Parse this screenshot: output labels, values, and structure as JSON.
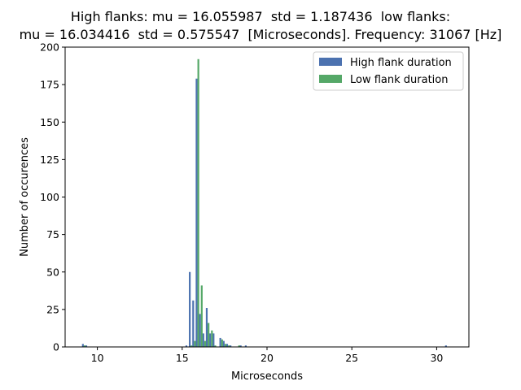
{
  "chart_data": {
    "type": "bar",
    "title_line1": "High flanks: mu = 16.055987  std = 1.187436  low flanks:",
    "title_line2": "mu = 16.034416  std = 0.575547  [Microseconds]. Frequency: 31067 [Hz]",
    "xlabel": "Microseconds",
    "ylabel": "Number of occurences",
    "xlim": [
      8.1,
      31.9
    ],
    "ylim": [
      0,
      200
    ],
    "xticks": [
      10,
      15,
      20,
      25,
      30
    ],
    "yticks": [
      0,
      25,
      50,
      75,
      100,
      125,
      150,
      175,
      200
    ],
    "grid": false,
    "legend_position": "top-right",
    "bin_width": 0.21,
    "series": [
      {
        "name": "High flank duration",
        "color": "#4c72b0",
        "points": [
          {
            "x": 9.2,
            "y": 2
          },
          {
            "x": 9.4,
            "y": 1
          },
          {
            "x": 15.3,
            "y": 1
          },
          {
            "x": 15.5,
            "y": 50
          },
          {
            "x": 15.7,
            "y": 31
          },
          {
            "x": 15.9,
            "y": 179
          },
          {
            "x": 16.1,
            "y": 22
          },
          {
            "x": 16.3,
            "y": 9
          },
          {
            "x": 16.5,
            "y": 26
          },
          {
            "x": 16.7,
            "y": 9
          },
          {
            "x": 16.9,
            "y": 9
          },
          {
            "x": 17.3,
            "y": 6
          },
          {
            "x": 17.5,
            "y": 4
          },
          {
            "x": 17.7,
            "y": 2
          },
          {
            "x": 17.9,
            "y": 1
          },
          {
            "x": 18.5,
            "y": 1
          },
          {
            "x": 18.8,
            "y": 1
          },
          {
            "x": 30.6,
            "y": 1
          }
        ]
      },
      {
        "name": "Low flank duration",
        "color": "#55a868",
        "points": [
          {
            "x": 9.2,
            "y": 1
          },
          {
            "x": 15.5,
            "y": 1
          },
          {
            "x": 15.7,
            "y": 4
          },
          {
            "x": 15.9,
            "y": 192
          },
          {
            "x": 16.1,
            "y": 41
          },
          {
            "x": 16.3,
            "y": 4
          },
          {
            "x": 16.5,
            "y": 16
          },
          {
            "x": 16.7,
            "y": 11
          },
          {
            "x": 16.9,
            "y": 1
          },
          {
            "x": 17.3,
            "y": 5
          },
          {
            "x": 17.5,
            "y": 2
          },
          {
            "x": 17.7,
            "y": 1
          },
          {
            "x": 18.3,
            "y": 1
          }
        ]
      }
    ]
  }
}
